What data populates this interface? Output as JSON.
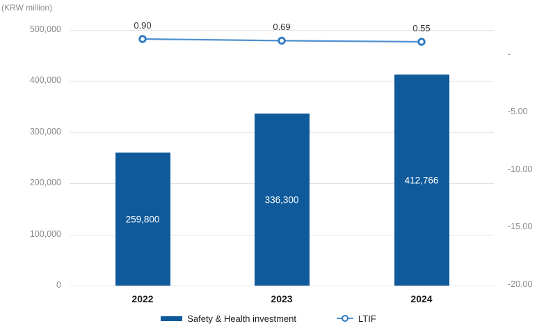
{
  "colors": {
    "bar": "#0F5A9A",
    "line": "#4E90CF",
    "marker_ring": "#2B78C3",
    "grid": "#E3E3E3",
    "axis_text": "#8A8A8A",
    "dark_text": "#1A1A1A"
  },
  "chart_data": {
    "type": "bar",
    "categories": [
      "2022",
      "2023",
      "2024"
    ],
    "series": [
      {
        "name": "Safety & Health investment",
        "type": "bar",
        "axis": "left",
        "values": [
          259800,
          336300,
          412766
        ],
        "labels": [
          "259,800",
          "336,300",
          "412,766"
        ]
      },
      {
        "name": "LTIF",
        "type": "line",
        "axis": "right",
        "values": [
          0.9,
          0.69,
          0.55
        ],
        "labels": [
          "0.90",
          "0.69",
          "0.55"
        ]
      }
    ],
    "left_axis": {
      "label": "(KRW million)",
      "ticks": [
        "500,000",
        "400,000",
        "300,000",
        "200,000",
        "100,000",
        "0"
      ],
      "min": 0,
      "max": 500000
    },
    "right_axis": {
      "ticks": [
        "-",
        "-5.00",
        "-10.00",
        "-15.00",
        "-20.00"
      ]
    },
    "legend": {
      "position": "bottom",
      "items": [
        "Safety & Health investment",
        "LTIF"
      ]
    },
    "grid": true
  }
}
